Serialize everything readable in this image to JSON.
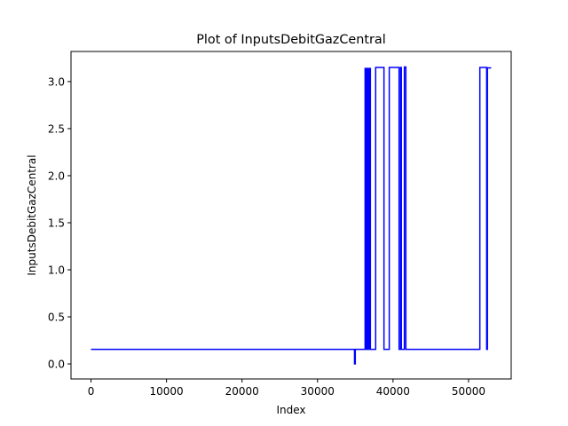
{
  "chart_data": {
    "type": "line",
    "title": "Plot of InputsDebitGazCentral",
    "xlabel": "Index",
    "ylabel": "InputsDebitGazCentral",
    "xlim": [
      -2650,
      55650
    ],
    "ylim": [
      -0.16,
      3.32
    ],
    "xticks": [
      0,
      10000,
      20000,
      30000,
      40000,
      50000
    ],
    "yticks": [
      0.0,
      0.5,
      1.0,
      1.5,
      2.0,
      2.5,
      3.0
    ],
    "xtick_labels": [
      "0",
      "10000",
      "20000",
      "30000",
      "40000",
      "50000"
    ],
    "ytick_labels": [
      "0.0",
      "0.5",
      "1.0",
      "1.5",
      "2.0",
      "2.5",
      "3.0"
    ],
    "grid": false,
    "legend": "none",
    "series": [
      {
        "color": "#0000ff",
        "x": [
          0,
          34900,
          34900,
          35000,
          35000,
          35100,
          35100,
          36300,
          36300,
          36400,
          36400,
          36500,
          36500,
          36600,
          36600,
          36700,
          36700,
          36800,
          36800,
          36900,
          36900,
          37000,
          37000,
          37100,
          37100,
          37300,
          37300,
          37700,
          37700,
          37800,
          37800,
          38800,
          38800,
          39500,
          39500,
          40800,
          40800,
          41000,
          41000,
          41100,
          41100,
          41500,
          41500,
          41700,
          41700,
          42600,
          42600,
          51500,
          51500,
          52400,
          52400,
          52500,
          52500,
          53000
        ],
        "y": [
          0.155,
          0.155,
          0.0,
          0.0,
          0.155,
          0.155,
          0.155,
          0.155,
          3.14,
          3.14,
          0.155,
          0.155,
          3.14,
          3.14,
          0.155,
          0.155,
          3.14,
          3.14,
          0.155,
          0.155,
          3.14,
          3.14,
          0.155,
          0.155,
          0.155,
          0.155,
          0.155,
          0.155,
          3.15,
          3.15,
          3.15,
          3.15,
          0.155,
          0.155,
          3.15,
          3.15,
          0.155,
          0.155,
          3.15,
          3.15,
          0.155,
          0.155,
          3.155,
          3.155,
          0.155,
          0.155,
          0.155,
          0.155,
          3.15,
          3.15,
          0.155,
          0.155,
          3.145,
          3.145
        ]
      }
    ]
  }
}
